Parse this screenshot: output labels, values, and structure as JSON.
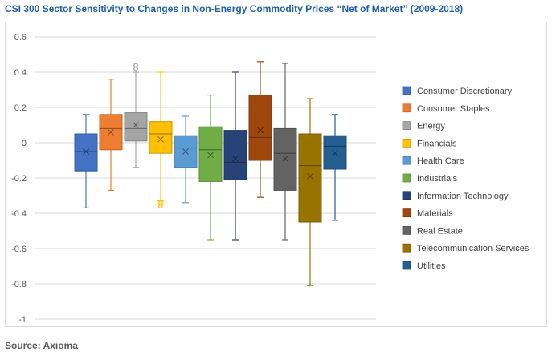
{
  "title": "CSI 300 Sector Sensitivity to Changes in Non-Energy Commodity Prices “Net of Market” (2009-2018)",
  "source": "Source: Axioma",
  "chart_data": {
    "type": "box",
    "ylim": [
      -1,
      0.6
    ],
    "yticks": [
      "0.6",
      "0.4",
      "0.2",
      "0",
      "-0.2",
      "-0.4",
      "-0.6",
      "-0.8",
      "-1"
    ],
    "ytick_values": [
      0.6,
      0.4,
      0.2,
      0,
      -0.2,
      -0.4,
      -0.6,
      -0.8,
      -1
    ],
    "grid": true,
    "legend_position": "right",
    "series": [
      {
        "name": "Consumer Discretionary",
        "color": "#4472c4",
        "whisker_low": -0.37,
        "q1": -0.16,
        "median": -0.05,
        "q3": 0.05,
        "whisker_high": 0.16,
        "mean": -0.05,
        "outliers": []
      },
      {
        "name": "Consumer Staples",
        "color": "#ed7d31",
        "whisker_low": -0.27,
        "q1": -0.04,
        "median": 0.08,
        "q3": 0.16,
        "whisker_high": 0.36,
        "mean": 0.06,
        "outliers": []
      },
      {
        "name": "Energy",
        "color": "#a5a5a5",
        "whisker_low": -0.14,
        "q1": 0.01,
        "median": 0.08,
        "q3": 0.17,
        "whisker_high": 0.4,
        "mean": 0.1,
        "outliers": [
          0.42,
          0.44
        ]
      },
      {
        "name": "Financials",
        "color": "#ffc000",
        "whisker_low": -0.33,
        "q1": -0.06,
        "median": 0.05,
        "q3": 0.12,
        "whisker_high": 0.4,
        "mean": 0.02,
        "outliers": [
          -0.34,
          -0.36
        ]
      },
      {
        "name": "Health Care",
        "color": "#5b9bd5",
        "whisker_low": -0.34,
        "q1": -0.14,
        "median": -0.03,
        "q3": 0.04,
        "whisker_high": 0.15,
        "mean": -0.05,
        "outliers": []
      },
      {
        "name": "Industrials",
        "color": "#70ad47",
        "whisker_low": -0.55,
        "q1": -0.22,
        "median": -0.04,
        "q3": 0.09,
        "whisker_high": 0.27,
        "mean": -0.07,
        "outliers": []
      },
      {
        "name": "Information Technology",
        "color": "#264478",
        "whisker_low": -0.55,
        "q1": -0.21,
        "median": -0.11,
        "q3": 0.07,
        "whisker_high": 0.4,
        "mean": -0.09,
        "outliers": []
      },
      {
        "name": "Materials",
        "color": "#9e480e",
        "whisker_low": -0.31,
        "q1": -0.1,
        "median": 0.03,
        "q3": 0.27,
        "whisker_high": 0.46,
        "mean": 0.07,
        "outliers": []
      },
      {
        "name": "Real Estate",
        "color": "#636363",
        "whisker_low": -0.55,
        "q1": -0.27,
        "median": -0.06,
        "q3": 0.08,
        "whisker_high": 0.45,
        "mean": -0.09,
        "outliers": []
      },
      {
        "name": "Telecommunication Services",
        "color": "#997300",
        "whisker_low": -0.81,
        "q1": -0.45,
        "median": -0.13,
        "q3": 0.05,
        "whisker_high": 0.25,
        "mean": -0.19,
        "outliers": []
      },
      {
        "name": "Utilities",
        "color": "#255e91",
        "whisker_low": -0.44,
        "q1": -0.15,
        "median": -0.02,
        "q3": 0.04,
        "whisker_high": 0.16,
        "mean": -0.06,
        "outliers": []
      }
    ]
  }
}
